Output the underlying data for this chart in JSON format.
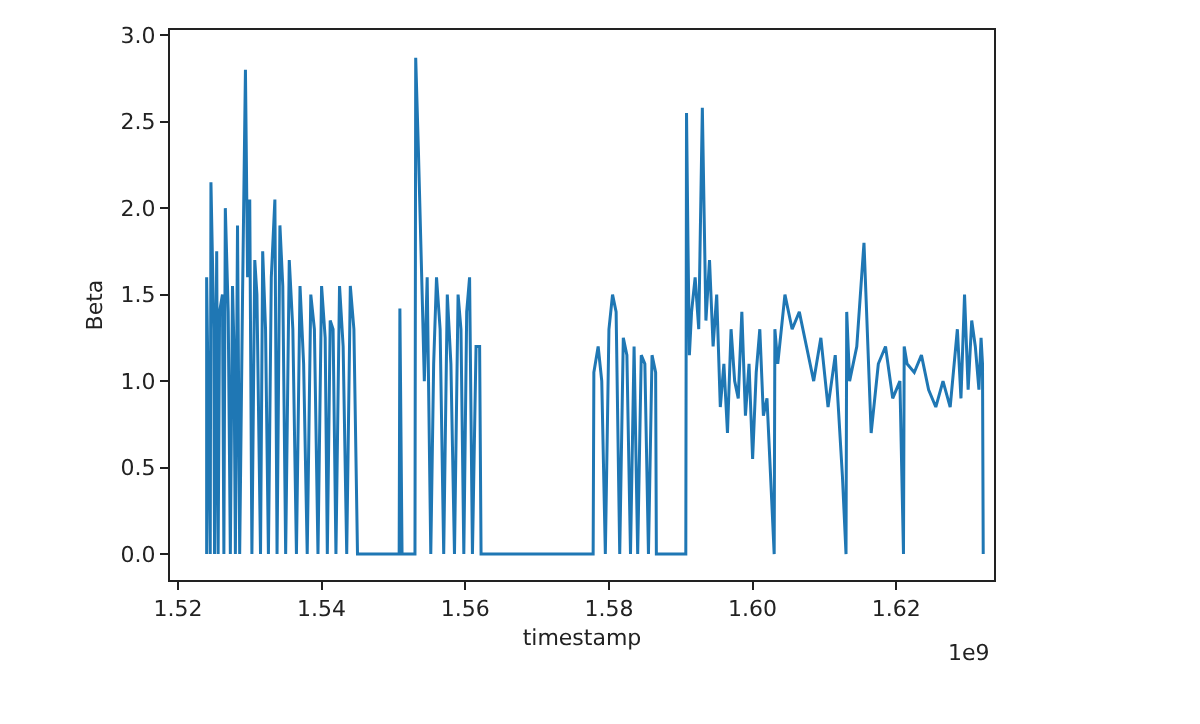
{
  "chart_data": {
    "type": "line",
    "xlabel": "timestamp",
    "ylabel": "Beta",
    "xlim": [
      1.5189,
      1.6336
    ],
    "ylim": [
      -0.15,
      3.03
    ],
    "xticks": [
      1.52,
      1.54,
      1.56,
      1.58,
      {
        "value": 1.6,
        "label": "1.60"
      },
      1.62
    ],
    "yticks": [
      {
        "value": 0,
        "label": "0.0"
      },
      0.5,
      {
        "value": 1,
        "label": "1.0"
      },
      1.5,
      {
        "value": 2,
        "label": "2.0"
      },
      2.5,
      {
        "value": 3,
        "label": "3.0"
      }
    ],
    "annotations": [
      "1e9"
    ],
    "series": [
      {
        "color": "#1f77b4",
        "x": [
          1.524,
          1.524,
          1.5245,
          1.5246,
          1.525,
          1.5251,
          1.5254,
          1.5256,
          1.5258,
          1.5262,
          1.5264,
          1.5266,
          1.527,
          1.5273,
          1.5276,
          1.5278,
          1.528,
          1.5283,
          1.5286,
          1.529,
          1.5294,
          1.5297,
          1.53,
          1.5303,
          1.5307,
          1.531,
          1.5315,
          1.5318,
          1.5322,
          1.5326,
          1.533,
          1.5335,
          1.5338,
          1.5342,
          1.5346,
          1.535,
          1.5355,
          1.536,
          1.5365,
          1.537,
          1.5375,
          1.538,
          1.5385,
          1.539,
          1.5395,
          1.54,
          1.5405,
          1.5408,
          1.5412,
          1.5416,
          1.542,
          1.5425,
          1.543,
          1.5435,
          1.544,
          1.5445,
          1.545,
          1.5455,
          1.546,
          1.5465,
          1.547,
          1.5472,
          1.5508,
          1.5509,
          1.5512,
          1.5513,
          1.553,
          1.5531,
          1.5535,
          1.554,
          1.5543,
          1.5547,
          1.5552,
          1.5556,
          1.556,
          1.5565,
          1.557,
          1.5575,
          1.558,
          1.5585,
          1.559,
          1.5594,
          1.5598,
          1.5602,
          1.5606,
          1.561,
          1.5615,
          1.562,
          1.5622,
          1.5778,
          1.5779,
          1.5785,
          1.579,
          1.5795,
          1.58,
          1.5805,
          1.581,
          1.5815,
          1.582,
          1.5825,
          1.583,
          1.5835,
          1.584,
          1.5845,
          1.585,
          1.5855,
          1.586,
          1.5865,
          1.5866,
          1.5907,
          1.5908,
          1.591,
          1.5912,
          1.5915,
          1.592,
          1.5925,
          1.593,
          1.5935,
          1.594,
          1.5945,
          1.595,
          1.5955,
          1.596,
          1.5965,
          1.597,
          1.5975,
          1.598,
          1.5985,
          1.599,
          1.5995,
          1.6,
          1.6005,
          1.601,
          1.6015,
          1.602,
          1.603,
          1.6031,
          1.6035,
          1.6045,
          1.6055,
          1.6065,
          1.6075,
          1.6085,
          1.6095,
          1.6105,
          1.6115,
          1.6125,
          1.613,
          1.6131,
          1.6135,
          1.6145,
          1.6155,
          1.6165,
          1.6175,
          1.6185,
          1.6195,
          1.6205,
          1.621,
          1.6211,
          1.6215,
          1.6225,
          1.6235,
          1.6245,
          1.6255,
          1.6265,
          1.6275,
          1.6285,
          1.629,
          1.6295,
          1.63,
          1.6305,
          1.631,
          1.6315,
          1.6318,
          1.632,
          1.6321
        ],
        "values": [
          0,
          1.6,
          0,
          2.15,
          1.3,
          0,
          1.75,
          0,
          1.4,
          1.5,
          0,
          2.0,
          1.4,
          0,
          1.55,
          1.2,
          0,
          1.9,
          0,
          1.5,
          2.8,
          1.6,
          2.05,
          0,
          1.7,
          1.5,
          0,
          1.75,
          1.3,
          0,
          1.6,
          2.05,
          0,
          1.9,
          1.55,
          0,
          1.7,
          1.3,
          0,
          1.55,
          1.1,
          0,
          1.5,
          1.3,
          0,
          1.55,
          1.25,
          0,
          1.35,
          1.3,
          0,
          1.55,
          1.2,
          0,
          1.55,
          1.3,
          0,
          0,
          0,
          0,
          0,
          0,
          0,
          1.42,
          0,
          0,
          0,
          2.87,
          2.3,
          1.5,
          1.0,
          1.6,
          0,
          1.1,
          1.6,
          1.3,
          0,
          1.5,
          1.1,
          0,
          1.5,
          1.3,
          0,
          1.4,
          1.6,
          0,
          1.2,
          1.2,
          0,
          0,
          1.05,
          1.2,
          1.0,
          0,
          1.3,
          1.5,
          1.4,
          0,
          1.25,
          1.15,
          0,
          1.2,
          0,
          1.15,
          1.1,
          0,
          1.15,
          1.05,
          0,
          0,
          2.55,
          1.8,
          1.15,
          1.4,
          1.6,
          1.3,
          2.58,
          1.35,
          1.7,
          1.2,
          1.5,
          0.85,
          1.1,
          0.7,
          1.3,
          1.0,
          0.9,
          1.4,
          0.8,
          1.1,
          0.55,
          1.05,
          1.3,
          0.8,
          0.9,
          0,
          1.3,
          1.1,
          1.5,
          1.3,
          1.4,
          1.2,
          1.0,
          1.25,
          0.85,
          1.15,
          0.45,
          0,
          1.4,
          1.0,
          1.2,
          1.8,
          0.7,
          1.1,
          1.2,
          0.9,
          1.0,
          0,
          1.2,
          1.1,
          1.05,
          1.15,
          0.95,
          0.85,
          1.0,
          0.85,
          1.3,
          0.9,
          1.5,
          0.95,
          1.35,
          1.2,
          0.95,
          1.25,
          1.1,
          0
        ]
      }
    ]
  }
}
